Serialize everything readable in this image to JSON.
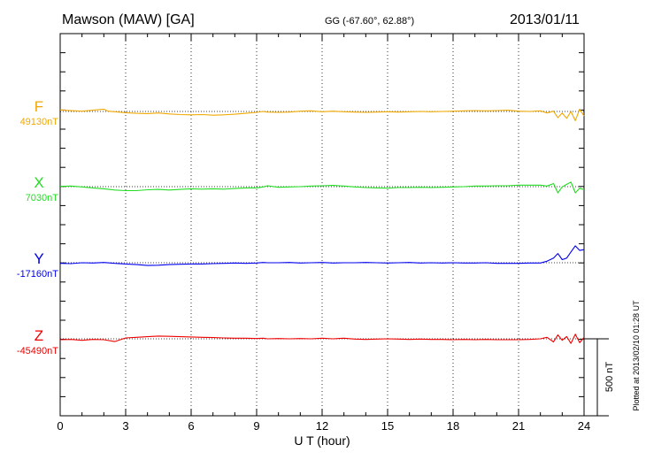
{
  "header": {
    "station": "Mawson (MAW)  [GA]",
    "coords": "GG (-67.60°,  62.88°)",
    "date": "2013/01/11"
  },
  "footer": {
    "plotted": "Plotted at 2013/02/10 01:28 UT"
  },
  "chart_data": {
    "type": "line",
    "xlabel": "U T (hour)",
    "xlim": [
      0,
      24
    ],
    "xticks": [
      "0",
      "3",
      "6",
      "9",
      "12",
      "15",
      "18",
      "21",
      "24"
    ],
    "scale_bar": {
      "label": "500 nT",
      "value": 500
    },
    "grid": "dotted vertical every 3 hours; dotted horizontal baseline per component",
    "series": [
      {
        "name": "F",
        "baseline_label": "49130nT",
        "baseline": 49130,
        "color": "#f0a800",
        "x": [
          0,
          0.5,
          1,
          1.5,
          2,
          2.2,
          2.5,
          3,
          3.5,
          4,
          4.5,
          5,
          5.5,
          6,
          6.5,
          7,
          7.5,
          8,
          8.5,
          9,
          9.3,
          9.5,
          10,
          10.5,
          11,
          11.5,
          12,
          12.5,
          13,
          13.5,
          14,
          14.5,
          15,
          15.5,
          16,
          16.5,
          17,
          17.5,
          18,
          18.5,
          19,
          19.5,
          20,
          20.5,
          21,
          21.5,
          22,
          22.3,
          22.6,
          22.8,
          23,
          23.2,
          23.4,
          23.6,
          23.8,
          24
        ],
        "y": [
          49140,
          49135,
          49132,
          49138,
          49145,
          49132,
          49128,
          49122,
          49118,
          49116,
          49120,
          49114,
          49110,
          49108,
          49110,
          49106,
          49108,
          49112,
          49118,
          49124,
          49130,
          49126,
          49124,
          49126,
          49132,
          49134,
          49128,
          49132,
          49128,
          49126,
          49124,
          49126,
          49128,
          49126,
          49128,
          49130,
          49128,
          49130,
          49132,
          49134,
          49136,
          49134,
          49136,
          49138,
          49132,
          49130,
          49134,
          49120,
          49132,
          49090,
          49120,
          49085,
          49130,
          49070,
          49145,
          49100
        ]
      },
      {
        "name": "X",
        "baseline_label": "7030nT",
        "baseline": 7030,
        "color": "#22dd22",
        "x": [
          0,
          0.5,
          1,
          1.5,
          2,
          2.5,
          3,
          3.5,
          4,
          4.5,
          5,
          5.5,
          6,
          6.5,
          7,
          7.5,
          8,
          8.5,
          9,
          9.3,
          9.5,
          10,
          10.5,
          11,
          11.5,
          12,
          12.5,
          13,
          13.5,
          14,
          14.5,
          15,
          15.5,
          16,
          16.5,
          17,
          17.5,
          18,
          18.5,
          19,
          19.5,
          20,
          20.5,
          21,
          21.5,
          22,
          22.3,
          22.6,
          22.8,
          23,
          23.2,
          23.4,
          23.6,
          23.8,
          24
        ],
        "y": [
          7032,
          7034,
          7028,
          7022,
          7016,
          7008,
          7004,
          7004,
          7010,
          7012,
          7008,
          7012,
          7016,
          7014,
          7016,
          7014,
          7018,
          7022,
          7022,
          7028,
          7036,
          7026,
          7028,
          7030,
          7034,
          7036,
          7038,
          7034,
          7028,
          7024,
          7022,
          7020,
          7024,
          7024,
          7026,
          7024,
          7026,
          7028,
          7030,
          7034,
          7034,
          7036,
          7036,
          7040,
          7040,
          7040,
          7034,
          7050,
          6990,
          7028,
          7045,
          7060,
          6990,
          7020,
          7010
        ]
      },
      {
        "name": "Y",
        "baseline_label": "-17160nT",
        "baseline": -17160,
        "color": "#0000ee",
        "x": [
          0,
          0.5,
          1,
          1.5,
          2,
          2.5,
          3,
          3.5,
          4,
          4.5,
          5,
          5.5,
          6,
          6.5,
          7,
          7.5,
          8,
          8.5,
          9,
          9.3,
          9.5,
          10,
          10.5,
          11,
          11.5,
          12,
          12.5,
          13,
          13.5,
          14,
          14.5,
          15,
          15.5,
          16,
          16.5,
          17,
          17.5,
          18,
          18.5,
          19,
          19.5,
          20,
          20.5,
          21,
          21.5,
          22,
          22.3,
          22.6,
          22.8,
          23,
          23.2,
          23.4,
          23.6,
          23.8,
          24
        ],
        "y": [
          -17164,
          -17166,
          -17160,
          -17162,
          -17158,
          -17164,
          -17168,
          -17172,
          -17178,
          -17176,
          -17172,
          -17170,
          -17168,
          -17168,
          -17166,
          -17164,
          -17162,
          -17164,
          -17162,
          -17158,
          -17160,
          -17160,
          -17158,
          -17162,
          -17160,
          -17158,
          -17162,
          -17160,
          -17160,
          -17158,
          -17160,
          -17162,
          -17160,
          -17158,
          -17162,
          -17160,
          -17162,
          -17160,
          -17162,
          -17162,
          -17160,
          -17164,
          -17164,
          -17164,
          -17162,
          -17162,
          -17150,
          -17130,
          -17100,
          -17140,
          -17130,
          -17090,
          -17050,
          -17080,
          -17075
        ]
      },
      {
        "name": "Z",
        "baseline_label": "-45490nT",
        "baseline": -45490,
        "color": "#ee0000",
        "x": [
          0,
          0.5,
          1,
          1.5,
          2,
          2.5,
          3,
          3.5,
          4,
          4.5,
          5,
          5.5,
          6,
          6.5,
          7,
          7.5,
          8,
          8.5,
          9,
          9.3,
          9.5,
          10,
          10.5,
          11,
          11.5,
          12,
          12.5,
          13,
          13.5,
          14,
          14.5,
          15,
          15.5,
          16,
          16.5,
          17,
          17.5,
          18,
          18.5,
          19,
          19.5,
          20,
          20.5,
          21,
          21.5,
          22,
          22.3,
          22.6,
          22.8,
          23,
          23.2,
          23.4,
          23.6,
          23.8,
          24
        ],
        "y": [
          -45496,
          -45494,
          -45500,
          -45494,
          -45496,
          -45508,
          -45484,
          -45480,
          -45476,
          -45472,
          -45474,
          -45476,
          -45478,
          -45480,
          -45482,
          -45484,
          -45486,
          -45486,
          -45488,
          -45486,
          -45490,
          -45488,
          -45490,
          -45488,
          -45490,
          -45486,
          -45490,
          -45486,
          -45492,
          -45494,
          -45492,
          -45490,
          -45492,
          -45494,
          -45492,
          -45494,
          -45494,
          -45496,
          -45494,
          -45496,
          -45494,
          -45496,
          -45496,
          -45496,
          -45494,
          -45490,
          -45480,
          -45510,
          -45465,
          -45500,
          -45475,
          -45520,
          -45460,
          -45515,
          -45480
        ]
      }
    ]
  }
}
